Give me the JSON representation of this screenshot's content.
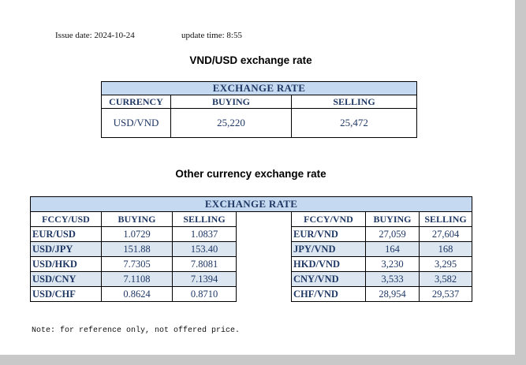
{
  "header": {
    "issue_date": "Issue date: 2024-10-24",
    "update_time": "update time: 8:55"
  },
  "vnd_usd": {
    "title": "VND/USD exchange rate",
    "table": {
      "caption": "EXCHANGE RATE",
      "columns": [
        "CURRENCY",
        "BUYING",
        "SELLING"
      ],
      "rows": [
        [
          "USD/VND",
          "25,220",
          "25,472"
        ]
      ]
    }
  },
  "other": {
    "title": "Other currency exchange rate",
    "table": {
      "caption": "EXCHANGE RATE",
      "columns": [
        "FCCY/USD",
        "BUYING",
        "SELLING",
        "FCCY/VND",
        "BUYING",
        "SELLING"
      ],
      "rows": [
        [
          "EUR/USD",
          "1.0729",
          "1.0837",
          "EUR/VND",
          "27,059",
          "27,604"
        ],
        [
          "USD/JPY",
          "151.88",
          "153.40",
          "JPY/VND",
          "164",
          "168"
        ],
        [
          "USD/HKD",
          "7.7305",
          "7.8081",
          "HKD/VND",
          "3,230",
          "3,295"
        ],
        [
          "USD/CNY",
          "7.1108",
          "7.1394",
          "CNY/VND",
          "3,533",
          "3,582"
        ],
        [
          "USD/CHF",
          "0.8624",
          "0.8710",
          "CHF/VND",
          "28,954",
          "29,537"
        ]
      ]
    }
  },
  "note": "Note: for reference only, not offered price."
}
